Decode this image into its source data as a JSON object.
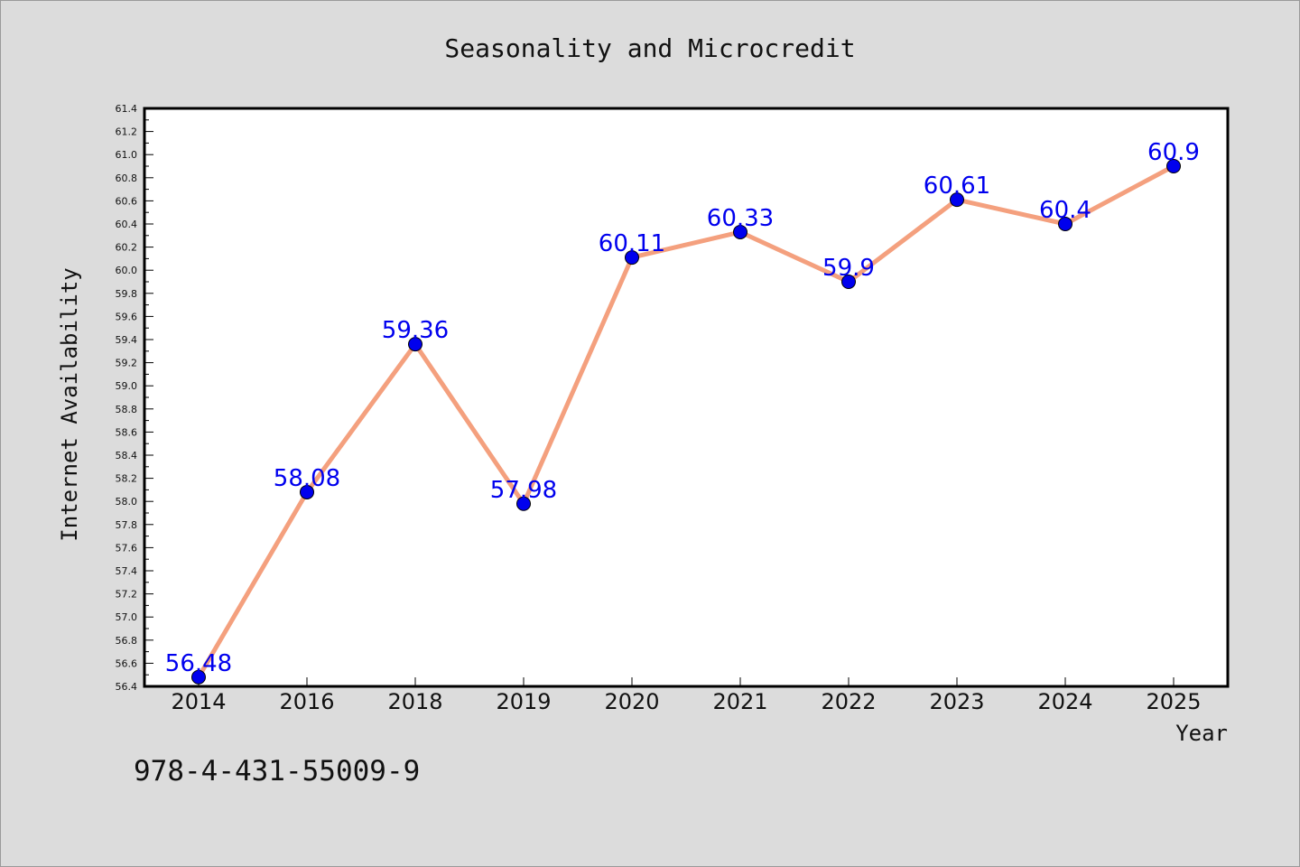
{
  "chart_data": {
    "type": "line",
    "title": "Seasonality and Microcredit",
    "xlabel": "Year",
    "ylabel": "Internet Availability",
    "categories": [
      "2014",
      "2016",
      "2018",
      "2019",
      "2020",
      "2021",
      "2022",
      "2023",
      "2024",
      "2025"
    ],
    "values": [
      56.48,
      58.08,
      59.36,
      57.98,
      60.11,
      60.33,
      59.9,
      60.61,
      60.4,
      60.9
    ],
    "data_labels": [
      "56.48",
      "58.08",
      "59.36",
      "57.98",
      "60.11",
      "60.33",
      "59.9",
      "60.61",
      "60.4",
      "60.9"
    ],
    "ylim": [
      56.4,
      61.4
    ],
    "yticks": [
      "56.4",
      "56.6",
      "56.8",
      "57.0",
      "57.2",
      "57.4",
      "57.6",
      "57.8",
      "58.0",
      "58.2",
      "58.4",
      "58.6",
      "58.8",
      "59.0",
      "59.2",
      "59.4",
      "59.6",
      "59.8",
      "60.0",
      "60.2",
      "60.4",
      "60.6",
      "60.8",
      "61.0",
      "61.2",
      "61.4"
    ],
    "grid": false,
    "line_color": "#f4a07e",
    "marker_color": "#0000ee",
    "label_color": "#0000ee"
  },
  "footer": {
    "isbn": "978-4-431-55009-9"
  }
}
